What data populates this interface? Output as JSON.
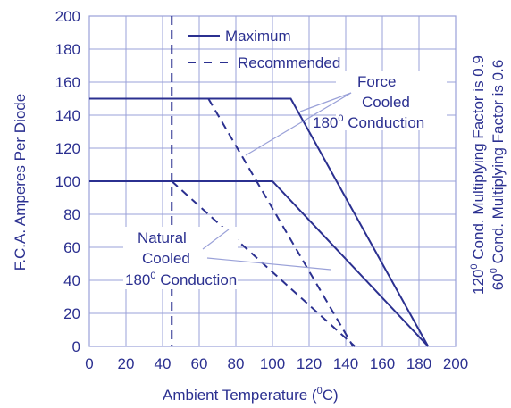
{
  "chart_data": {
    "type": "line",
    "xlabel": "Ambient Temperature (°C)",
    "xlabel_parts": {
      "pre": "Ambient Temperature (",
      "sup": "0",
      "post": "C)"
    },
    "ylabel": "F.C.A. Amperes Per Diode",
    "right_labels": [
      "120° Cond. Multiplying Factor is 0.9",
      "60° Cond. Multiplying Factor is 0.6"
    ],
    "right_label_parts": [
      {
        "pre": "120",
        "sup": "0",
        "post": " Cond. Multiplying Factor is 0.9"
      },
      {
        "pre": "60",
        "sup": "0",
        "post": " Cond. Multiplying Factor is 0.6"
      }
    ],
    "xlim": [
      0,
      200
    ],
    "ylim": [
      0,
      200
    ],
    "x_ticks": [
      "0",
      "20",
      "40",
      "60",
      "80",
      "100",
      "120",
      "140",
      "160",
      "180",
      "200"
    ],
    "y_ticks": [
      "0",
      "20",
      "40",
      "60",
      "80",
      "100",
      "120",
      "140",
      "160",
      "180",
      "200"
    ],
    "grid": true,
    "legend": {
      "placement": "top",
      "entries": [
        {
          "label": "Maximum",
          "style": "solid"
        },
        {
          "label": "Recommended",
          "style": "dashed"
        }
      ]
    },
    "series": [
      {
        "group": "force",
        "style": "solid",
        "x": [
          0,
          110,
          185
        ],
        "y": [
          150,
          150,
          0
        ]
      },
      {
        "group": "natural",
        "style": "solid",
        "x": [
          0,
          100,
          185
        ],
        "y": [
          100,
          100,
          0
        ]
      },
      {
        "group": "force",
        "style": "dashed",
        "x": [
          65,
          144
        ],
        "y": [
          150,
          0
        ]
      },
      {
        "group": "natural",
        "style": "dashed",
        "x": [
          45,
          145
        ],
        "y": [
          100,
          0
        ]
      }
    ],
    "vline": {
      "x": 45,
      "style": "dashed"
    },
    "annotations": [
      {
        "lines": [
          "Force",
          "Cooled",
          "180° Conduction"
        ],
        "group": "force"
      },
      {
        "lines": [
          "Natural",
          "Cooled",
          "180° Conduction"
        ],
        "group": "natural"
      }
    ],
    "annotation_parts": {
      "force_1": "Force",
      "force_2": "Cooled",
      "force_3": {
        "pre": "180",
        "sup": "0",
        "post": " Conduction"
      },
      "natural_1": "Natural",
      "natural_2": "Cooled",
      "natural_3": {
        "pre": "180",
        "sup": "0",
        "post": " Conduction"
      }
    },
    "colors": {
      "line": "#2b3090",
      "grid": "#9aa1d8",
      "text": "#2b3090"
    }
  }
}
